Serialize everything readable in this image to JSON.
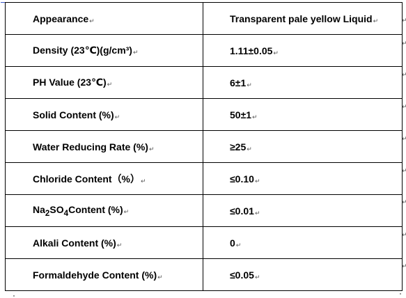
{
  "paragraph_mark": "↵",
  "rows": [
    {
      "property": "Appearance",
      "value": "Transparent pale yellow Liquid"
    },
    {
      "property": "Density (23℃)(g/cm³)",
      "value": "1.11±0.05"
    },
    {
      "property": "PH Value (23℃)",
      "value": "6±1"
    },
    {
      "property": "Solid Content (%)",
      "value": "50±1"
    },
    {
      "property": "Water Reducing Rate (%)",
      "value": "≥25"
    },
    {
      "property": "Chloride Content（%）",
      "value": "≤0.10"
    },
    {
      "property_parts": [
        "Na",
        "2",
        "SO",
        "4",
        "Content (%)"
      ],
      "value": "≤0.01"
    },
    {
      "property": "Alkali Content (%)",
      "value": "0"
    },
    {
      "property": "Formaldehyde Content (%)",
      "value": "≤0.05"
    }
  ]
}
